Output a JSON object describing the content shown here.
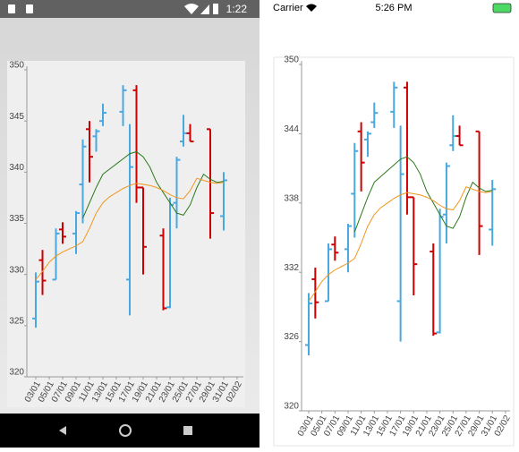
{
  "android_status": {
    "time": "1:22"
  },
  "ios_status": {
    "carrier": "Carrier",
    "time": "5:26 PM"
  },
  "chart_data": [
    {
      "type": "ohlc",
      "categories": [
        "03/01",
        null,
        "05/01",
        null,
        "07/01",
        null,
        "09/01",
        null,
        "11/01",
        null,
        "13/01",
        null,
        "15/01",
        null,
        "17/01",
        null,
        "19/01",
        null,
        "21/01",
        null,
        "23/01",
        null,
        "25/01",
        null,
        "27/01",
        null,
        "29/01",
        null,
        "31/01",
        null,
        "02/02"
      ],
      "open": [
        325.7,
        331.4,
        null,
        329.5,
        334.4,
        null,
        334.0,
        338.8,
        344.2,
        343.5,
        345.0,
        null,
        null,
        345.9,
        329.5,
        348.0,
        338.5,
        null,
        null,
        333.8,
        326.8,
        337.0,
        343.0,
        343.8,
        null,
        null,
        344.2,
        null,
        335.7,
        null,
        null
      ],
      "high": [
        330.2,
        332.4,
        null,
        334.5,
        335.1,
        null,
        336.2,
        343.2,
        345.0,
        344.2,
        346.7,
        null,
        null,
        348.5,
        344.7,
        348.5,
        338.5,
        null,
        null,
        334.5,
        337.5,
        341.5,
        345.6,
        344.7,
        null,
        null,
        344.2,
        null,
        340.0,
        null,
        null
      ],
      "low": [
        324.8,
        328.0,
        null,
        329.5,
        333.0,
        null,
        332.0,
        335.0,
        339.0,
        342.0,
        344.5,
        null,
        null,
        344.5,
        326.0,
        337.0,
        330.0,
        null,
        null,
        326.5,
        326.7,
        334.5,
        342.5,
        343.0,
        null,
        null,
        333.5,
        null,
        334.3,
        null,
        null
      ],
      "close": [
        329.3,
        329.4,
        null,
        334.0,
        333.7,
        null,
        336.0,
        342.5,
        341.5,
        344.0,
        345.8,
        null,
        null,
        348.0,
        340.5,
        338.5,
        332.7,
        null,
        null,
        326.7,
        336.8,
        341.2,
        343.8,
        343.0,
        null,
        null,
        336.0,
        null,
        339.2,
        null,
        null
      ],
      "up_color": "#4aa8e0",
      "down_color": "#cc0000",
      "lines": [
        {
          "color": "#2a7a1a",
          "values": [
            null,
            null,
            null,
            null,
            null,
            null,
            null,
            335.5,
            337.0,
            338.5,
            339.8,
            340.3,
            340.8,
            341.3,
            341.8,
            342.0,
            341.5,
            340.5,
            339.0,
            338.0,
            337.0,
            336.0,
            335.8,
            336.8,
            338.5,
            339.8,
            339.3,
            339.0,
            339.1,
            null,
            null
          ]
        },
        {
          "color": "#f0961e",
          "values": [
            329.5,
            330.3,
            331.2,
            331.8,
            332.2,
            332.5,
            332.8,
            333.2,
            334.5,
            336.0,
            337.0,
            337.6,
            338.0,
            338.4,
            338.7,
            338.9,
            338.8,
            338.7,
            338.5,
            338.2,
            337.8,
            337.5,
            337.4,
            338.2,
            339.4,
            339.2,
            339.0,
            338.9,
            339.0,
            null,
            null
          ]
        }
      ],
      "ylim": [
        320,
        350
      ],
      "yticks": [
        320,
        325,
        330,
        335,
        340,
        345,
        350
      ]
    },
    {
      "type": "ohlc",
      "categories": [
        "03/01",
        null,
        "05/01",
        null,
        "07/01",
        null,
        "09/01",
        null,
        "11/01",
        null,
        "13/01",
        null,
        "15/01",
        null,
        "17/01",
        null,
        "19/01",
        null,
        "21/01",
        null,
        "23/01",
        null,
        "25/01",
        null,
        "27/01",
        null,
        "29/01",
        null,
        "31/01",
        null,
        "02/02"
      ],
      "open": [
        325.7,
        331.4,
        null,
        329.5,
        334.4,
        null,
        334.0,
        338.8,
        344.2,
        343.5,
        345.0,
        null,
        null,
        345.9,
        329.5,
        348.0,
        338.5,
        null,
        null,
        333.8,
        326.8,
        337.0,
        343.0,
        343.8,
        null,
        null,
        344.2,
        null,
        335.7,
        null,
        null
      ],
      "high": [
        330.2,
        332.4,
        null,
        334.5,
        335.1,
        null,
        336.2,
        343.2,
        345.0,
        344.2,
        346.7,
        null,
        null,
        348.5,
        344.7,
        348.5,
        338.5,
        null,
        null,
        334.5,
        337.5,
        341.5,
        345.6,
        344.7,
        null,
        null,
        344.2,
        null,
        340.0,
        null,
        null
      ],
      "low": [
        324.8,
        328.0,
        null,
        329.5,
        333.0,
        null,
        332.0,
        335.0,
        339.0,
        342.0,
        344.5,
        null,
        null,
        344.5,
        326.0,
        337.0,
        330.0,
        null,
        null,
        326.5,
        326.7,
        334.5,
        342.5,
        343.0,
        null,
        null,
        333.5,
        null,
        334.3,
        null,
        null
      ],
      "close": [
        329.3,
        329.4,
        null,
        334.0,
        333.7,
        null,
        336.0,
        342.5,
        341.5,
        344.0,
        345.8,
        null,
        null,
        348.0,
        340.5,
        338.5,
        332.7,
        null,
        null,
        326.7,
        336.8,
        341.2,
        343.8,
        343.0,
        null,
        null,
        336.0,
        null,
        339.2,
        null,
        null
      ],
      "up_color": "#4aa8e0",
      "down_color": "#cc0000",
      "lines": [
        {
          "color": "#2a7a1a",
          "values": [
            null,
            null,
            null,
            null,
            null,
            null,
            null,
            335.5,
            337.0,
            338.5,
            339.8,
            340.3,
            340.8,
            341.3,
            341.8,
            342.0,
            341.5,
            340.5,
            339.0,
            338.0,
            337.0,
            336.0,
            335.8,
            336.8,
            338.5,
            339.8,
            339.3,
            339.0,
            339.1,
            null,
            null
          ]
        },
        {
          "color": "#f0961e",
          "values": [
            329.5,
            330.3,
            331.2,
            331.8,
            332.2,
            332.5,
            332.8,
            333.2,
            334.5,
            336.0,
            337.0,
            337.6,
            338.0,
            338.4,
            338.7,
            338.9,
            338.8,
            338.7,
            338.5,
            338.2,
            337.8,
            337.5,
            337.4,
            338.2,
            339.4,
            339.2,
            339.0,
            338.9,
            339.0,
            null,
            null
          ]
        }
      ],
      "ylim": [
        320,
        350
      ],
      "yticks": [
        320,
        326,
        332,
        338,
        344,
        350
      ]
    }
  ]
}
